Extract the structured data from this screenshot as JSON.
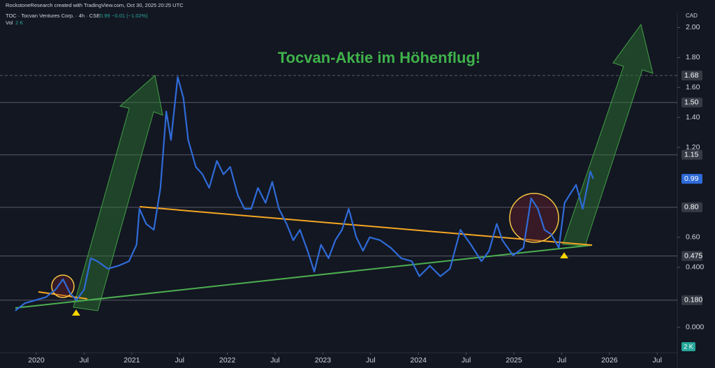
{
  "chart_data": {
    "type": "line",
    "header": "RockstoneResearch created with TradingView.com, Oct 30, 2025 20:25 UTC",
    "title": "Tocvan-Aktie im Höhenflug!",
    "symbol_price": "0.99",
    "symbol_change": "−0.01 (−1.02%)",
    "volume_label": "Vol",
    "volume_value": "2 K",
    "currency": "CAD",
    "volume_badge": "2 K",
    "xlim": [
      2019.62,
      2026.71
    ],
    "xticks": [
      2020,
      {
        "value": 2020.5,
        "label": "Jul"
      },
      2021,
      {
        "value": 2021.5,
        "label": "Jul"
      },
      2022,
      {
        "value": 2022.5,
        "label": "Jul"
      },
      2023,
      {
        "value": 2023.5,
        "label": "Jul"
      },
      2024,
      {
        "value": 2024.5,
        "label": "Jul"
      },
      2025,
      {
        "value": 2025.5,
        "label": "Jul"
      },
      2026,
      {
        "value": 2026.5,
        "label": "Jul"
      }
    ],
    "ylim": [
      -0.17,
      2.1
    ],
    "yticks": [
      {
        "value": 2,
        "label": "2.00"
      },
      {
        "value": 1.8,
        "label": "1.80"
      },
      {
        "value": 1.6,
        "label": "1.60"
      },
      {
        "value": 1.4,
        "label": "1.40"
      },
      {
        "value": 1.2,
        "label": "1.20"
      },
      {
        "value": 0.6,
        "label": "0.60"
      },
      {
        "value": 0.4,
        "label": "0.400"
      },
      {
        "value": 0,
        "label": "0.000"
      }
    ],
    "price_levels": [
      {
        "value": 1.68,
        "label": "1.68"
      },
      {
        "value": 1.5,
        "label": "1.50"
      },
      {
        "value": 1.15,
        "label": "1.15"
      },
      {
        "value": 0.8,
        "label": "0.80"
      },
      {
        "value": 0.475,
        "label": "0.475"
      },
      {
        "value": 0.18,
        "label": "0.180"
      }
    ],
    "last_price": {
      "value": 0.99,
      "label": "0.99"
    },
    "series": [
      {
        "name": "TOC · Tocvan Ventures Corp. · 4h · CSE",
        "color": "#2f6bd8",
        "x": [
          2019.78,
          2019.88,
          2019.99,
          2020.1,
          2020.2,
          2020.28,
          2020.35,
          2020.42,
          2020.5,
          2020.57,
          2020.64,
          2020.75,
          2020.86,
          2020.97,
          2021.05,
          2021.08,
          2021.15,
          2021.23,
          2021.3,
          2021.36,
          2021.41,
          2021.48,
          2021.54,
          2021.59,
          2021.67,
          2021.74,
          2021.81,
          2021.89,
          2021.96,
          2022.03,
          2022.11,
          2022.18,
          2022.25,
          2022.32,
          2022.4,
          2022.47,
          2022.54,
          2022.62,
          2022.69,
          2022.76,
          2022.84,
          2022.91,
          2022.98,
          2023.06,
          2023.13,
          2023.2,
          2023.27,
          2023.35,
          2023.42,
          2023.49,
          2023.6,
          2023.71,
          2023.82,
          2023.93,
          2024.01,
          2024.12,
          2024.23,
          2024.33,
          2024.44,
          2024.55,
          2024.66,
          2024.74,
          2024.82,
          2024.88,
          2024.99,
          2025.1,
          2025.18,
          2025.25,
          2025.32,
          2025.39,
          2025.47,
          2025.53,
          2025.58,
          2025.65,
          2025.72,
          2025.8,
          2025.83
        ],
        "values": [
          0.11,
          0.16,
          0.18,
          0.2,
          0.25,
          0.32,
          0.23,
          0.18,
          0.25,
          0.46,
          0.44,
          0.39,
          0.41,
          0.44,
          0.55,
          0.79,
          0.69,
          0.65,
          0.93,
          1.44,
          1.25,
          1.67,
          1.53,
          1.25,
          1.07,
          1.02,
          0.93,
          1.11,
          1.02,
          1.07,
          0.88,
          0.79,
          0.79,
          0.93,
          0.83,
          0.97,
          0.79,
          0.69,
          0.58,
          0.65,
          0.51,
          0.37,
          0.55,
          0.46,
          0.58,
          0.65,
          0.79,
          0.6,
          0.51,
          0.6,
          0.58,
          0.53,
          0.46,
          0.44,
          0.34,
          0.41,
          0.34,
          0.39,
          0.65,
          0.55,
          0.44,
          0.51,
          0.69,
          0.58,
          0.48,
          0.53,
          0.86,
          0.79,
          0.65,
          0.62,
          0.53,
          0.83,
          0.88,
          0.95,
          0.79,
          1.04,
          0.99
        ]
      }
    ]
  }
}
